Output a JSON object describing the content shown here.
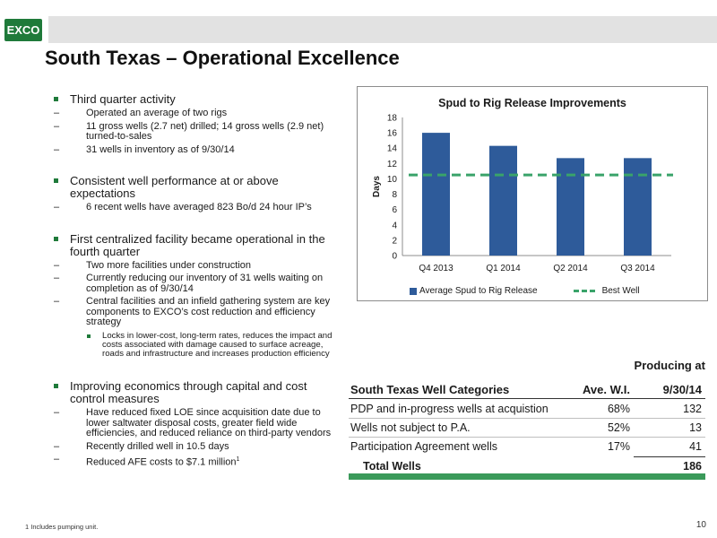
{
  "header": {
    "logo_text": "EXCO",
    "title": "South Texas – Operational Excellence"
  },
  "bullets": [
    {
      "text": "Third quarter activity",
      "sub": [
        {
          "text": "Operated an average of two rigs"
        },
        {
          "text": "11 gross wells (2.7 net) drilled; 14  gross wells (2.9 net) turned-to-sales"
        },
        {
          "text": "31 wells in inventory as of 9/30/14"
        }
      ]
    },
    {
      "text": "Consistent well performance at or above expectations",
      "sub": [
        {
          "text": "6 recent wells have averaged 823 Bo/d 24 hour IP’s"
        }
      ]
    },
    {
      "text": "First centralized facility became operational in the fourth quarter",
      "sub": [
        {
          "text": "Two more facilities under construction"
        },
        {
          "text": "Currently reducing our inventory of 31 wells waiting on completion as of 9/30/14"
        },
        {
          "text": "Central facilities and an infield gathering system are key components to EXCO’s cost reduction and efficiency strategy"
        }
      ],
      "subsub": "Locks in lower-cost, long-term rates, reduces the impact and costs associated with damage caused to surface acreage, roads and infrastructure and increases production efficiency"
    },
    {
      "text": "Improving economics through capital and cost control measures",
      "sub": [
        {
          "text": "Have reduced fixed LOE since acquisition date due to lower saltwater disposal costs, greater field wide efficiencies, and reduced reliance on third-party vendors"
        },
        {
          "text": "Recently drilled well in 10.5 days"
        },
        {
          "text": "Reduced AFE costs to $7.1 million"
        }
      ],
      "footnote_marker": "1"
    }
  ],
  "chart_data": {
    "type": "bar",
    "title": "Spud to Rig Release Improvements",
    "ylabel": "Days",
    "xlabel": "",
    "categories": [
      "Q4 2013",
      "Q1 2014",
      "Q2 2014",
      "Q3 2014"
    ],
    "series": [
      {
        "name": "Average Spud to Rig Release",
        "values": [
          16.0,
          14.3,
          12.7,
          12.7
        ],
        "color": "#2e5b9a"
      }
    ],
    "reference_line": {
      "name": "Best Well",
      "value": 10.5,
      "color": "#3aa36a"
    },
    "ylim": [
      0,
      18
    ],
    "yticks": [
      "0",
      "2",
      "4",
      "6",
      "8",
      "10",
      "12",
      "14",
      "16",
      "18"
    ],
    "grid": false,
    "legend": "bottom"
  },
  "table": {
    "headers": {
      "category": "South Texas Well Categories",
      "wi": "Ave. W.I.",
      "producing_top": "Producing at",
      "producing_bottom": "9/30/14"
    },
    "rows": [
      {
        "category": "PDP and in-progress wells at acquistion",
        "wi": "68%",
        "count": "132"
      },
      {
        "category": "Wells not subject to P.A.",
        "wi": "52%",
        "count": "13"
      },
      {
        "category": "Participation Agreement wells",
        "wi": "17%",
        "count": "41"
      }
    ],
    "total": {
      "label": "Total Wells",
      "count": "186"
    },
    "accent_color": "#3b9a5a"
  },
  "footnote": "1 Includes pumping unit.",
  "page_number": "10"
}
